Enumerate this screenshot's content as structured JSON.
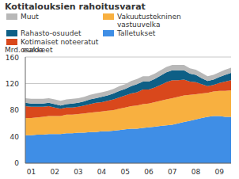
{
  "chart_data": {
    "type": "area",
    "title": "Kotitalouksien rahoitusvarat",
    "y_label": "Mrd. euroa",
    "stacked": true,
    "grid": true,
    "categories": [
      null,
      "01",
      null,
      null,
      null,
      "02",
      null,
      null,
      null,
      "03",
      null,
      null,
      null,
      "04",
      null,
      null,
      null,
      "05",
      null,
      null,
      null,
      "06",
      null,
      null,
      null,
      "07",
      null,
      null,
      null,
      "08",
      null,
      null,
      null,
      "09",
      null,
      null
    ],
    "ylim": [
      0,
      160
    ],
    "yticks": [
      0,
      40,
      80,
      120,
      160
    ],
    "series": [
      {
        "name": "Talletukset",
        "color": "#3f8ee6",
        "values": [
          42,
          42,
          43,
          43,
          44,
          44,
          44,
          45,
          45,
          46,
          46,
          47,
          47,
          48,
          48,
          49,
          50,
          51,
          52,
          52,
          53,
          54,
          55,
          56,
          57,
          58,
          60,
          62,
          64,
          66,
          68,
          70,
          71,
          71,
          70,
          70
        ]
      },
      {
        "name": "Vakuutustekninen vastuuvelka",
        "color": "#f8b040",
        "values": [
          26,
          26,
          26,
          27,
          27,
          27,
          27,
          28,
          28,
          28,
          29,
          29,
          30,
          30,
          31,
          31,
          32,
          33,
          34,
          35,
          36,
          36,
          37,
          38,
          39,
          40,
          40,
          40,
          39,
          38,
          37,
          36,
          37,
          38,
          39,
          40
        ]
      },
      {
        "name": "Kotimaiset noteeratut osakkeet",
        "color": "#d9481c",
        "values": [
          18,
          17,
          16,
          15,
          15,
          13,
          11,
          11,
          11,
          11,
          12,
          13,
          14,
          14,
          15,
          16,
          17,
          18,
          19,
          20,
          22,
          21,
          22,
          24,
          26,
          27,
          25,
          24,
          20,
          18,
          14,
          10,
          10,
          12,
          14,
          15
        ]
      },
      {
        "name": "Rahasto-osuudet",
        "color": "#0e5f86",
        "values": [
          5,
          5,
          5,
          5,
          5,
          5,
          5,
          5,
          6,
          6,
          6,
          7,
          7,
          8,
          8,
          9,
          10,
          10,
          11,
          12,
          12,
          12,
          13,
          14,
          15,
          15,
          15,
          14,
          12,
          11,
          9,
          8,
          8,
          9,
          10,
          11
        ]
      },
      {
        "name": "Muut",
        "color": "#b8b8b8",
        "values": [
          7,
          7,
          7,
          7,
          7,
          7,
          7,
          7,
          7,
          7,
          7,
          7,
          7,
          7,
          7,
          7,
          7,
          7,
          8,
          8,
          8,
          8,
          8,
          8,
          8,
          8,
          8,
          8,
          8,
          8,
          8,
          7,
          7,
          7,
          8,
          8
        ]
      }
    ]
  }
}
